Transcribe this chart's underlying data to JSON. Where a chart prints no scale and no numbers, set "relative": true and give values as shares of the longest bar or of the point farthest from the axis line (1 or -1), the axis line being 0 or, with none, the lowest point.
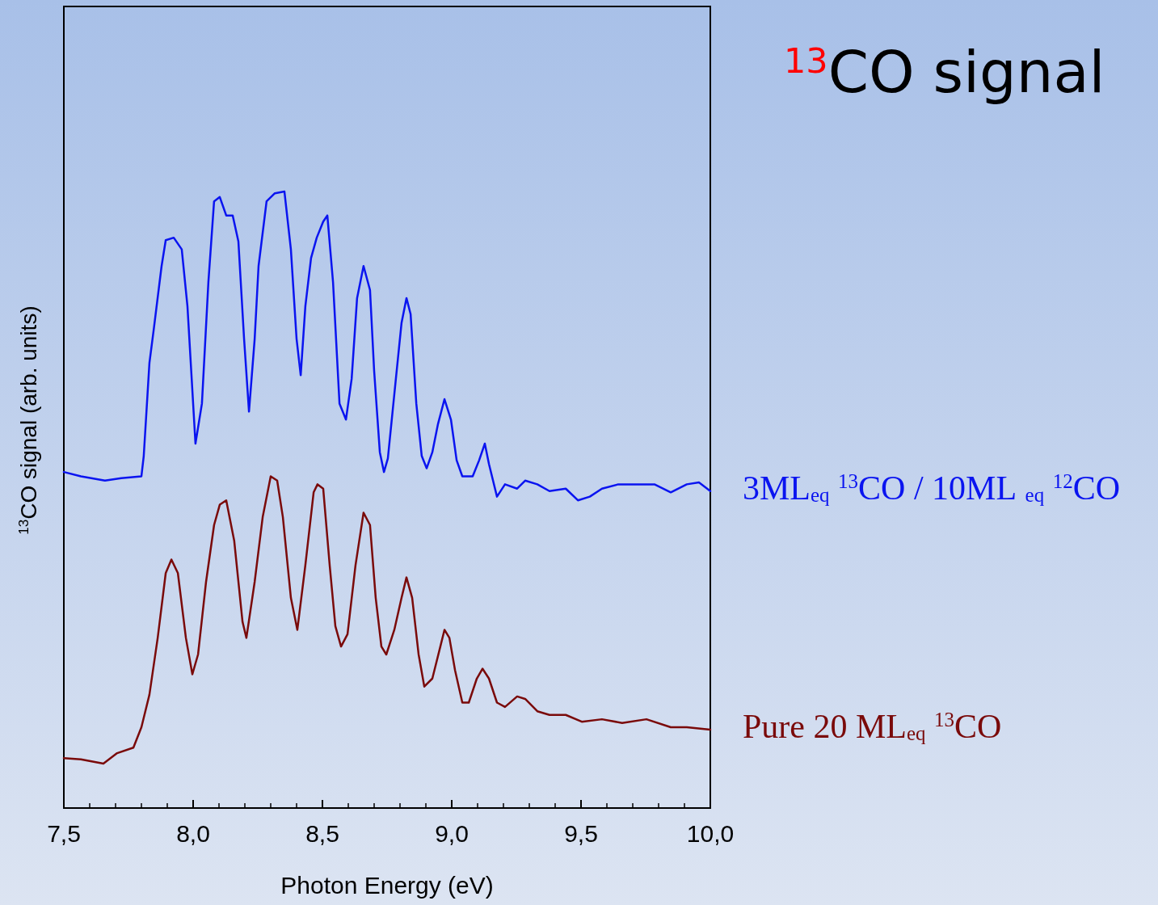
{
  "chart_data": {
    "type": "line",
    "title": "$^{13}$CO signal",
    "xlabel": "Photon Energy (eV)",
    "ylabel": "$^{13}$CO signal (arb. units)",
    "relative": true,
    "marker": "none",
    "line_style": "solid",
    "tick_labels": "x",
    "xlim": [
      7.5,
      10.0
    ],
    "xticks": [
      {
        "value": 7.5,
        "label": "7,5"
      },
      {
        "value": 8.0,
        "label": "8,0"
      },
      {
        "value": 8.5,
        "label": "8,5"
      },
      {
        "value": 9.0,
        "label": "9,0"
      },
      {
        "value": 9.5,
        "label": "9,5"
      },
      {
        "value": 10.0,
        "label": "10,0"
      }
    ],
    "series": [
      {
        "name": "3ML$_{eq}$ $^{13}$CO / 10ML $_{eq}$ $^{12}$CO",
        "color": "#0a14f0",
        "x": [
          7.5,
          7.566,
          7.659,
          7.722,
          7.8,
          7.809,
          7.831,
          7.847,
          7.878,
          7.894,
          7.925,
          7.956,
          7.978,
          8.009,
          8.034,
          8.059,
          8.081,
          8.103,
          8.128,
          8.153,
          8.175,
          8.197,
          8.216,
          8.238,
          8.253,
          8.284,
          8.316,
          8.353,
          8.378,
          8.4,
          8.416,
          8.434,
          8.456,
          8.478,
          8.503,
          8.519,
          8.541,
          8.566,
          8.591,
          8.613,
          8.634,
          8.659,
          8.684,
          8.7,
          8.722,
          8.738,
          8.753,
          8.784,
          8.806,
          8.825,
          8.841,
          8.863,
          8.884,
          8.903,
          8.925,
          8.947,
          8.972,
          8.997,
          9.019,
          9.041,
          9.081,
          9.106,
          9.128,
          9.144,
          9.175,
          9.206,
          9.253,
          9.284,
          9.331,
          9.378,
          9.441,
          9.488,
          9.534,
          9.581,
          9.644,
          9.722,
          9.784,
          9.847,
          9.909,
          9.956,
          10.0
        ],
        "values": [
          0.545,
          0.538,
          0.531,
          0.535,
          0.538,
          0.571,
          0.722,
          0.774,
          0.879,
          0.921,
          0.925,
          0.906,
          0.814,
          0.591,
          0.656,
          0.853,
          0.984,
          0.991,
          0.961,
          0.961,
          0.919,
          0.761,
          0.643,
          0.761,
          0.879,
          0.984,
          0.997,
          1.0,
          0.906,
          0.761,
          0.702,
          0.814,
          0.892,
          0.925,
          0.951,
          0.961,
          0.853,
          0.656,
          0.63,
          0.696,
          0.827,
          0.879,
          0.84,
          0.709,
          0.577,
          0.545,
          0.567,
          0.696,
          0.787,
          0.827,
          0.801,
          0.656,
          0.571,
          0.551,
          0.577,
          0.623,
          0.663,
          0.63,
          0.564,
          0.538,
          0.538,
          0.564,
          0.591,
          0.558,
          0.505,
          0.525,
          0.518,
          0.531,
          0.525,
          0.514,
          0.518,
          0.499,
          0.505,
          0.518,
          0.525,
          0.525,
          0.525,
          0.512,
          0.525,
          0.528,
          0.514
        ]
      },
      {
        "name": "Pure 20 ML$_{eq}$ $^{13}$CO",
        "color": "#7a0a0a",
        "x": [
          7.5,
          7.566,
          7.653,
          7.706,
          7.769,
          7.8,
          7.831,
          7.863,
          7.894,
          7.916,
          7.941,
          7.972,
          7.997,
          8.019,
          8.05,
          8.081,
          8.103,
          8.128,
          8.159,
          8.191,
          8.206,
          8.238,
          8.269,
          8.3,
          8.325,
          8.347,
          8.378,
          8.403,
          8.434,
          8.466,
          8.481,
          8.503,
          8.528,
          8.55,
          8.572,
          8.597,
          8.628,
          8.659,
          8.684,
          8.706,
          8.728,
          8.747,
          8.778,
          8.806,
          8.825,
          8.847,
          8.872,
          8.894,
          8.925,
          8.956,
          8.972,
          8.991,
          9.013,
          9.041,
          9.066,
          9.097,
          9.119,
          9.144,
          9.175,
          9.206,
          9.253,
          9.284,
          9.331,
          9.378,
          9.441,
          9.503,
          9.581,
          9.659,
          9.753,
          9.847,
          9.909,
          10.0
        ],
        "values": [
          0.081,
          0.079,
          0.072,
          0.089,
          0.098,
          0.131,
          0.184,
          0.276,
          0.381,
          0.403,
          0.381,
          0.276,
          0.217,
          0.249,
          0.367,
          0.459,
          0.492,
          0.499,
          0.433,
          0.302,
          0.276,
          0.367,
          0.472,
          0.538,
          0.531,
          0.472,
          0.341,
          0.289,
          0.394,
          0.512,
          0.525,
          0.518,
          0.394,
          0.295,
          0.262,
          0.282,
          0.394,
          0.479,
          0.459,
          0.341,
          0.262,
          0.249,
          0.289,
          0.341,
          0.374,
          0.341,
          0.249,
          0.197,
          0.21,
          0.262,
          0.289,
          0.276,
          0.223,
          0.171,
          0.171,
          0.21,
          0.226,
          0.21,
          0.171,
          0.164,
          0.181,
          0.177,
          0.157,
          0.151,
          0.151,
          0.14,
          0.144,
          0.138,
          0.144,
          0.131,
          0.131,
          0.127
        ]
      }
    ]
  }
}
